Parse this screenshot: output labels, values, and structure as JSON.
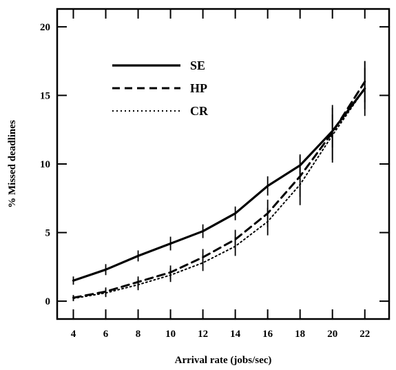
{
  "chart_data": {
    "type": "line",
    "title": "",
    "xlabel": "Arrival rate (jobs/sec)",
    "ylabel": "% Missed deadlines",
    "x": [
      4,
      6,
      8,
      10,
      12,
      14,
      16,
      18,
      20,
      22
    ],
    "xticks": [
      "4",
      "6",
      "8",
      "10",
      "12",
      "14",
      "16",
      "18",
      "20",
      "22"
    ],
    "yticks": [
      "0",
      "5",
      "10",
      "15",
      "20"
    ],
    "xlim": [
      3,
      23.5
    ],
    "ylim": [
      -1.3,
      21.3
    ],
    "grid": false,
    "legend_position": "top-left",
    "series": [
      {
        "name": "SE",
        "style": "solid",
        "values": [
          1.5,
          2.3,
          3.3,
          4.2,
          5.1,
          6.4,
          8.4,
          9.9,
          12.4,
          15.5
        ],
        "error": [
          0.3,
          0.4,
          0.4,
          0.5,
          0.5,
          0.5,
          0.7,
          0.8,
          1.2,
          2.0
        ]
      },
      {
        "name": "HP",
        "style": "dashed",
        "values": [
          0.25,
          0.7,
          1.4,
          2.1,
          3.2,
          4.5,
          6.4,
          9.1,
          12.3,
          16.0
        ],
        "error": [
          0.2,
          0.3,
          0.4,
          0.5,
          0.6,
          0.7,
          1.0,
          1.5,
          2.0,
          1.5
        ]
      },
      {
        "name": "CR",
        "style": "dotted",
        "values": [
          0.2,
          0.6,
          1.2,
          1.9,
          2.8,
          4.0,
          5.8,
          8.5,
          12.1,
          15.5
        ],
        "error": [
          0.2,
          0.3,
          0.4,
          0.5,
          0.6,
          0.7,
          1.0,
          1.5,
          2.0,
          1.5
        ]
      }
    ]
  }
}
